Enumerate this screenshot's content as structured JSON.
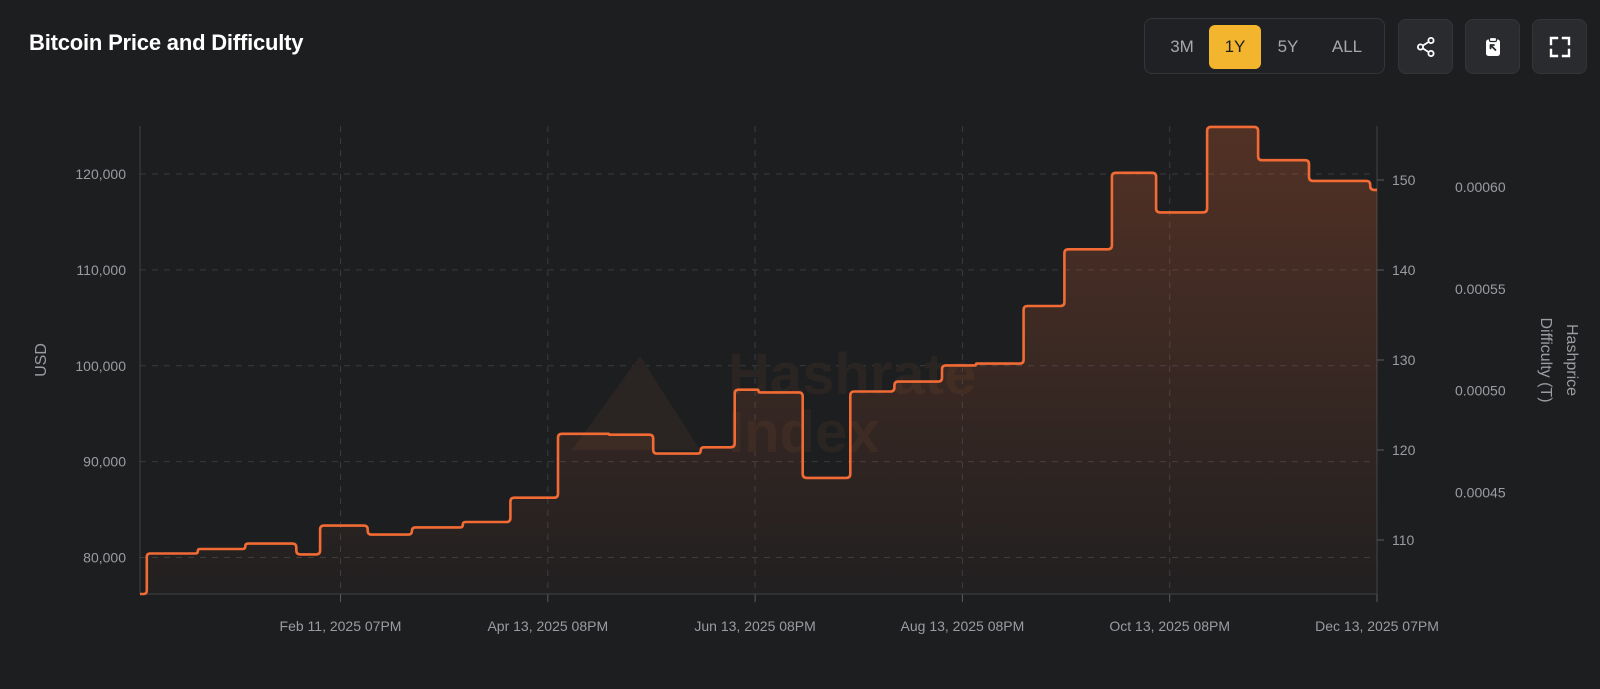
{
  "header": {
    "title": "Bitcoin Price and Difficulty"
  },
  "range_selector": {
    "options": [
      "3M",
      "1Y",
      "5Y",
      "ALL"
    ],
    "selected": "1Y"
  },
  "toolbar": {
    "share_icon": "share-icon",
    "clipboard_icon": "clipboard-icon",
    "fullscreen_icon": "fullscreen-icon"
  },
  "watermark": {
    "line1": "Hashrate",
    "line2": "Index"
  },
  "colors": {
    "background": "#1d1e20",
    "line": "#f26b35",
    "active_range": "#f2b52d",
    "grid": "#3a3b3f",
    "tick_text": "#9a9ca1"
  },
  "chart_data": {
    "type": "line",
    "step": true,
    "area_fill": true,
    "grid": true,
    "title": "Bitcoin Price and Difficulty",
    "ylabel_left": "USD",
    "ylabel_right_1": "Difficulty (T)",
    "ylabel_right_2": "Hashprice",
    "x_ticks": [
      "Feb 11, 2025 07PM",
      "Apr 13, 2025 08PM",
      "Jun 13, 2025 08PM",
      "Aug 13, 2025 08PM",
      "Oct 13, 2025 08PM",
      "Dec 13, 2025 07PM"
    ],
    "x_tick_dates": [
      "2025-02-11",
      "2025-04-13",
      "2025-06-13",
      "2025-08-13",
      "2025-10-13",
      "2025-12-13"
    ],
    "x_range": [
      "2024-12-14",
      "2025-12-13"
    ],
    "y_left": {
      "ticks": [
        80000,
        90000,
        100000,
        110000,
        120000
      ],
      "tick_labels": [
        "80,000",
        "90,000",
        "100,000",
        "110,000",
        "120,000"
      ],
      "range": [
        76200,
        125000
      ]
    },
    "y_difficulty": {
      "ticks": [
        110,
        120,
        130,
        140,
        150
      ],
      "tick_labels": [
        "110",
        "120",
        "130",
        "140",
        "150"
      ],
      "range": [
        104,
        156
      ]
    },
    "y_hashprice": {
      "ticks": [
        0.00045,
        0.0005,
        0.00055,
        0.0006
      ],
      "tick_labels": [
        "0.00045",
        "0.00050",
        "0.00055",
        "0.00060"
      ],
      "range": [
        0.0004,
        0.00063
      ]
    },
    "series": [
      {
        "name": "Difficulty (T)",
        "axis": "difficulty",
        "points": [
          [
            "2024-12-14",
            104.0
          ],
          [
            "2024-12-16",
            108.5
          ],
          [
            "2024-12-31",
            109.0
          ],
          [
            "2025-01-14",
            109.6
          ],
          [
            "2025-01-29",
            108.4
          ],
          [
            "2025-02-05",
            111.6
          ],
          [
            "2025-02-19",
            110.6
          ],
          [
            "2025-03-04",
            111.4
          ],
          [
            "2025-03-19",
            112.0
          ],
          [
            "2025-04-02",
            114.7
          ],
          [
            "2025-04-16",
            121.8
          ],
          [
            "2025-05-01",
            121.7
          ],
          [
            "2025-05-14",
            119.6
          ],
          [
            "2025-05-28",
            120.3
          ],
          [
            "2025-06-07",
            126.7
          ],
          [
            "2025-06-14",
            126.4
          ],
          [
            "2025-06-27",
            116.9
          ],
          [
            "2025-07-11",
            126.5
          ],
          [
            "2025-07-24",
            127.6
          ],
          [
            "2025-08-07",
            129.4
          ],
          [
            "2025-08-17",
            129.6
          ],
          [
            "2025-08-31",
            136.0
          ],
          [
            "2025-09-12",
            142.3
          ],
          [
            "2025-09-26",
            150.8
          ],
          [
            "2025-10-09",
            146.4
          ],
          [
            "2025-10-24",
            155.9
          ],
          [
            "2025-11-08",
            152.2
          ],
          [
            "2025-11-23",
            149.9
          ],
          [
            "2025-12-11",
            148.9
          ]
        ]
      }
    ]
  }
}
